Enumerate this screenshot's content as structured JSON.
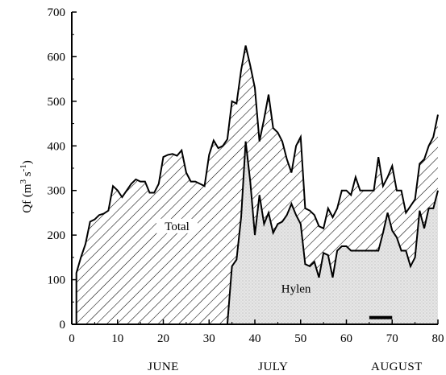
{
  "chart_data": {
    "type": "area",
    "ylabel": "Qf (m 3 s -1)",
    "ylabel_parts": {
      "base": "Qf (m",
      "exp1": "3",
      "mid": " s",
      "exp2": "-1",
      "close": ")"
    },
    "xlim": [
      0,
      80
    ],
    "ylim": [
      0,
      700
    ],
    "x_ticks": [
      0,
      10,
      20,
      30,
      40,
      50,
      60,
      70,
      80
    ],
    "y_ticks": [
      0,
      100,
      200,
      300,
      400,
      500,
      600,
      700
    ],
    "month_labels": [
      {
        "text": "JUNE",
        "x": 20
      },
      {
        "text": "JULY",
        "x": 44
      },
      {
        "text": "AUGUST",
        "x": 71
      }
    ],
    "series": [
      {
        "name": "Total",
        "label_at": {
          "x": 23,
          "y": 215
        },
        "fill": "hatch",
        "x": [
          1,
          2,
          3,
          4,
          5,
          6,
          7,
          8,
          9,
          10,
          11,
          12,
          13,
          14,
          15,
          16,
          17,
          18,
          19,
          20,
          21,
          22,
          23,
          24,
          25,
          26,
          27,
          28,
          29,
          30,
          31,
          32,
          33,
          34,
          35,
          36,
          37,
          38,
          39,
          40,
          41,
          42,
          43,
          44,
          45,
          46,
          47,
          48,
          49,
          50,
          51,
          52,
          53,
          54,
          55,
          56,
          57,
          58,
          59,
          60,
          61,
          62,
          63,
          64,
          65,
          66,
          67,
          68,
          69,
          70,
          71,
          72,
          73,
          74,
          75,
          76,
          77,
          78,
          79,
          80
        ],
        "values": [
          115,
          150,
          180,
          230,
          235,
          245,
          248,
          255,
          310,
          300,
          285,
          300,
          315,
          325,
          320,
          320,
          295,
          295,
          315,
          375,
          380,
          382,
          378,
          390,
          340,
          320,
          320,
          315,
          310,
          380,
          412,
          395,
          400,
          415,
          500,
          495,
          570,
          625,
          580,
          530,
          410,
          460,
          515,
          440,
          430,
          410,
          370,
          340,
          400,
          420,
          260,
          255,
          245,
          220,
          215,
          260,
          240,
          260,
          300,
          300,
          290,
          330,
          300,
          300,
          300,
          300,
          375,
          310,
          330,
          355,
          300,
          300,
          250,
          265,
          280,
          360,
          370,
          400,
          420,
          470
        ]
      },
      {
        "name": "Hylen",
        "label_at": {
          "x": 49,
          "y": 75
        },
        "fill": "stipple",
        "x": [
          34,
          35,
          36,
          37,
          38,
          39,
          40,
          41,
          42,
          43,
          44,
          45,
          46,
          47,
          48,
          49,
          50,
          51,
          52,
          53,
          54,
          55,
          56,
          57,
          58,
          59,
          60,
          61,
          62,
          63,
          64,
          65,
          66,
          67,
          68,
          69,
          70,
          71,
          72,
          73,
          74,
          75,
          76,
          77,
          78,
          79,
          80
        ],
        "values": [
          0,
          130,
          145,
          240,
          410,
          320,
          200,
          290,
          225,
          250,
          205,
          225,
          230,
          245,
          270,
          245,
          225,
          135,
          130,
          140,
          105,
          160,
          155,
          105,
          165,
          175,
          175,
          165,
          165,
          165,
          165,
          165,
          165,
          165,
          205,
          250,
          210,
          195,
          165,
          165,
          130,
          150,
          255,
          215,
          260,
          260,
          300
        ]
      }
    ],
    "annotations": [
      {
        "type": "bar",
        "x_start": 65,
        "x_end": 70,
        "y": 15
      }
    ]
  }
}
